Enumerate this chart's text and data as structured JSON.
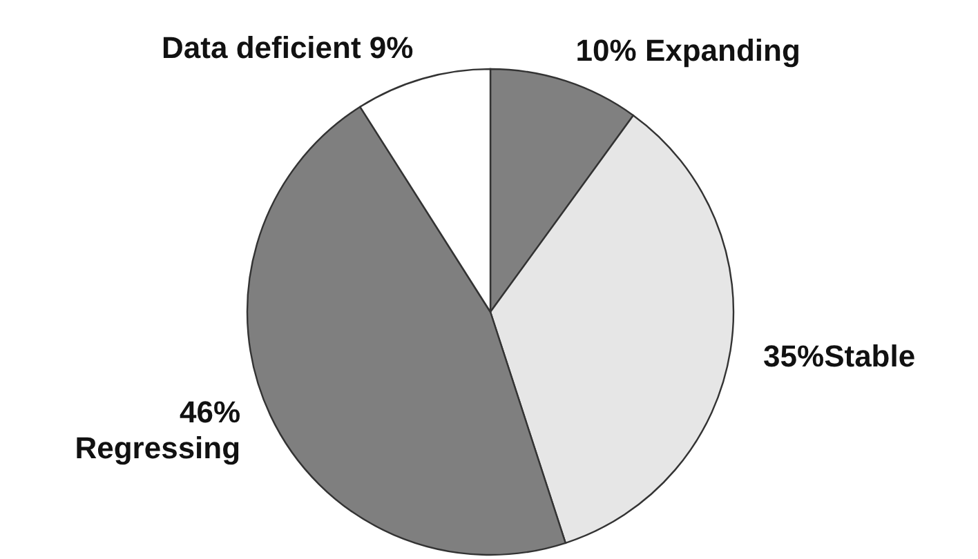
{
  "chart_data": {
    "type": "pie",
    "categories": [
      "10% Expanding",
      "35%Stable",
      "46%\nRegressing",
      "Data deficient 9%"
    ],
    "values": [
      10,
      35,
      46,
      9
    ],
    "colors": [
      "#808080",
      "#e6e6e6",
      "#7f7f7f",
      "#ffffff"
    ]
  }
}
